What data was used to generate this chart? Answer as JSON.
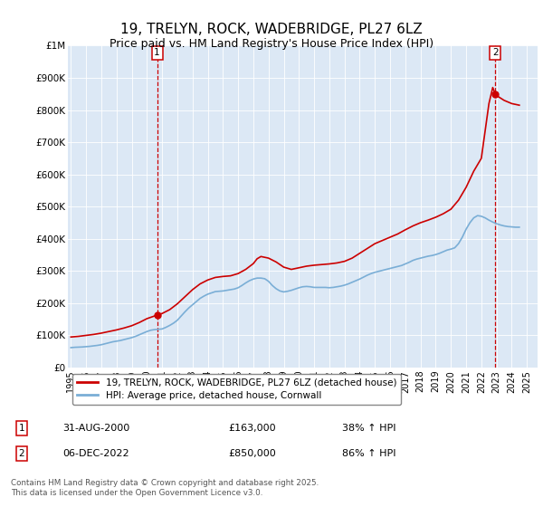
{
  "title": "19, TRELYN, ROCK, WADEBRIDGE, PL27 6LZ",
  "subtitle": "Price paid vs. HM Land Registry's House Price Index (HPI)",
  "legend_line1": "19, TRELYN, ROCK, WADEBRIDGE, PL27 6LZ (detached house)",
  "legend_line2": "HPI: Average price, detached house, Cornwall",
  "annotation1_label": "1",
  "annotation1_date": "31-AUG-2000",
  "annotation1_price": "£163,000",
  "annotation1_hpi": "38% ↑ HPI",
  "annotation2_label": "2",
  "annotation2_date": "06-DEC-2022",
  "annotation2_price": "£850,000",
  "annotation2_hpi": "86% ↑ HPI",
  "footer": "Contains HM Land Registry data © Crown copyright and database right 2025.\nThis data is licensed under the Open Government Licence v3.0.",
  "price_color": "#cc0000",
  "hpi_color": "#7aaed6",
  "plot_bg": "#dce8f5",
  "ylim": [
    0,
    1000000
  ],
  "yticks": [
    0,
    100000,
    200000,
    300000,
    400000,
    500000,
    600000,
    700000,
    800000,
    900000,
    1000000
  ],
  "ytick_labels": [
    "£0",
    "£100K",
    "£200K",
    "£300K",
    "£400K",
    "£500K",
    "£600K",
    "£700K",
    "£800K",
    "£900K",
    "£1M"
  ],
  "xlim_start": 1994.8,
  "xlim_end": 2025.7,
  "xticks": [
    1995,
    1996,
    1997,
    1998,
    1999,
    2000,
    2001,
    2002,
    2003,
    2004,
    2005,
    2006,
    2007,
    2008,
    2009,
    2010,
    2011,
    2012,
    2013,
    2014,
    2015,
    2016,
    2017,
    2018,
    2019,
    2020,
    2021,
    2022,
    2023,
    2024,
    2025
  ],
  "sale1_x": 2000.67,
  "sale1_y": 163000,
  "sale2_x": 2022.92,
  "sale2_y": 850000,
  "hpi_years": [
    1995.0,
    1995.25,
    1995.5,
    1995.75,
    1996.0,
    1996.25,
    1996.5,
    1996.75,
    1997.0,
    1997.25,
    1997.5,
    1997.75,
    1998.0,
    1998.25,
    1998.5,
    1998.75,
    1999.0,
    1999.25,
    1999.5,
    1999.75,
    2000.0,
    2000.25,
    2000.5,
    2000.75,
    2001.0,
    2001.25,
    2001.5,
    2001.75,
    2002.0,
    2002.25,
    2002.5,
    2002.75,
    2003.0,
    2003.25,
    2003.5,
    2003.75,
    2004.0,
    2004.25,
    2004.5,
    2004.75,
    2005.0,
    2005.25,
    2005.5,
    2005.75,
    2006.0,
    2006.25,
    2006.5,
    2006.75,
    2007.0,
    2007.25,
    2007.5,
    2007.75,
    2008.0,
    2008.25,
    2008.5,
    2008.75,
    2009.0,
    2009.25,
    2009.5,
    2009.75,
    2010.0,
    2010.25,
    2010.5,
    2010.75,
    2011.0,
    2011.25,
    2011.5,
    2011.75,
    2012.0,
    2012.25,
    2012.5,
    2012.75,
    2013.0,
    2013.25,
    2013.5,
    2013.75,
    2014.0,
    2014.25,
    2014.5,
    2014.75,
    2015.0,
    2015.25,
    2015.5,
    2015.75,
    2016.0,
    2016.25,
    2016.5,
    2016.75,
    2017.0,
    2017.25,
    2017.5,
    2017.75,
    2018.0,
    2018.25,
    2018.5,
    2018.75,
    2019.0,
    2019.25,
    2019.5,
    2019.75,
    2020.0,
    2020.25,
    2020.5,
    2020.75,
    2021.0,
    2021.25,
    2021.5,
    2021.75,
    2022.0,
    2022.25,
    2022.5,
    2022.75,
    2023.0,
    2023.25,
    2023.5,
    2023.75,
    2024.0,
    2024.25,
    2024.5
  ],
  "hpi_values": [
    62000,
    63000,
    63500,
    64000,
    65000,
    66000,
    67500,
    69000,
    71000,
    74000,
    77000,
    80000,
    82000,
    84000,
    87000,
    90000,
    93000,
    97000,
    102000,
    107000,
    112000,
    116000,
    118000,
    119000,
    120000,
    125000,
    131000,
    138000,
    147000,
    160000,
    173000,
    185000,
    195000,
    205000,
    215000,
    222000,
    228000,
    232000,
    236000,
    237000,
    238000,
    240000,
    242000,
    244000,
    248000,
    255000,
    263000,
    270000,
    275000,
    278000,
    278000,
    276000,
    268000,
    255000,
    245000,
    238000,
    235000,
    237000,
    240000,
    244000,
    248000,
    251000,
    252000,
    251000,
    249000,
    249000,
    249000,
    249000,
    248000,
    249000,
    251000,
    253000,
    256000,
    260000,
    265000,
    270000,
    275000,
    281000,
    287000,
    292000,
    296000,
    299000,
    302000,
    305000,
    308000,
    311000,
    314000,
    317000,
    322000,
    327000,
    333000,
    337000,
    340000,
    343000,
    346000,
    348000,
    351000,
    355000,
    360000,
    365000,
    368000,
    372000,
    385000,
    405000,
    430000,
    450000,
    465000,
    472000,
    470000,
    465000,
    458000,
    452000,
    447000,
    443000,
    440000,
    438000,
    437000,
    436000,
    436000
  ],
  "price_line_years": [
    1995.0,
    1995.5,
    1996.0,
    1996.5,
    1997.0,
    1997.5,
    1998.0,
    1998.5,
    1999.0,
    1999.5,
    2000.0,
    2000.67,
    2001.0,
    2001.5,
    2002.0,
    2002.5,
    2003.0,
    2003.5,
    2004.0,
    2004.5,
    2005.0,
    2005.5,
    2006.0,
    2006.5,
    2007.0,
    2007.25,
    2007.5,
    2008.0,
    2008.5,
    2009.0,
    2009.5,
    2010.0,
    2010.5,
    2011.0,
    2011.5,
    2012.0,
    2012.5,
    2013.0,
    2013.5,
    2014.0,
    2014.5,
    2015.0,
    2015.5,
    2016.0,
    2016.5,
    2017.0,
    2017.5,
    2018.0,
    2018.5,
    2019.0,
    2019.5,
    2020.0,
    2020.5,
    2021.0,
    2021.5,
    2022.0,
    2022.5,
    2022.75,
    2022.92,
    2023.0,
    2023.5,
    2024.0,
    2024.5
  ],
  "price_line_values": [
    95000,
    97000,
    100000,
    103000,
    107000,
    112000,
    117000,
    123000,
    130000,
    140000,
    152000,
    163000,
    168000,
    180000,
    198000,
    220000,
    242000,
    260000,
    272000,
    280000,
    283000,
    285000,
    292000,
    305000,
    323000,
    338000,
    345000,
    340000,
    328000,
    312000,
    305000,
    310000,
    315000,
    318000,
    320000,
    322000,
    325000,
    330000,
    340000,
    355000,
    370000,
    385000,
    395000,
    405000,
    415000,
    428000,
    440000,
    450000,
    458000,
    467000,
    478000,
    492000,
    520000,
    560000,
    610000,
    650000,
    820000,
    870000,
    850000,
    845000,
    830000,
    820000,
    815000
  ]
}
